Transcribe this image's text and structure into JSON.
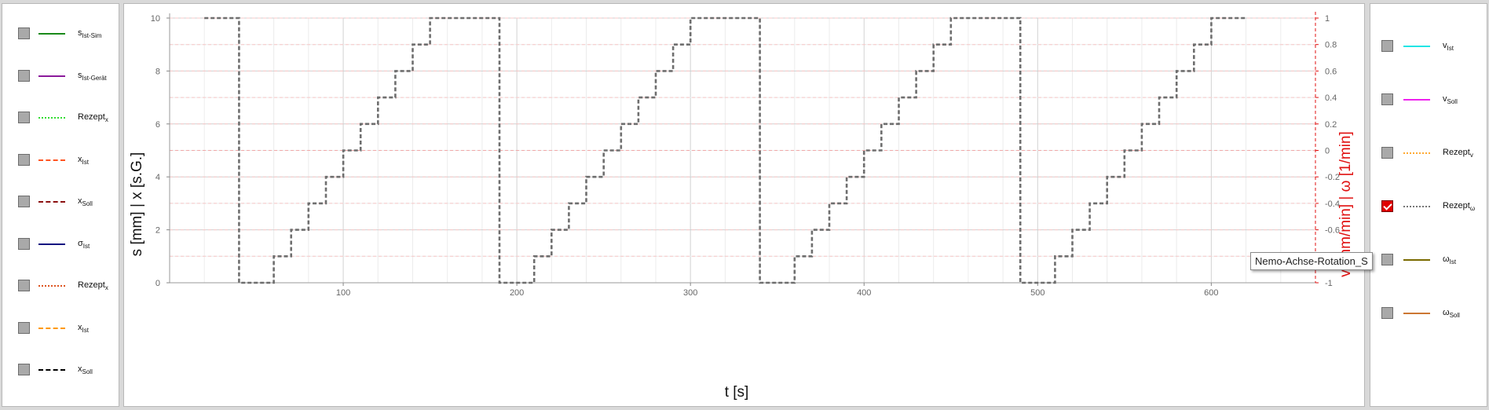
{
  "left_legend": [
    {
      "base": "s",
      "sub": "Ist-Sim",
      "color": "#1a8a1a",
      "style": "solid",
      "checked": false
    },
    {
      "base": "s",
      "sub": "Ist-Gerät",
      "color": "#8b1a9b",
      "style": "solid",
      "checked": false
    },
    {
      "base": "Rezept",
      "sub": "x",
      "color": "#33dd33",
      "style": "dotted",
      "checked": false
    },
    {
      "base": "x",
      "sub": "Ist",
      "color": "#ff5522",
      "style": "dashdot",
      "checked": false
    },
    {
      "base": "x",
      "sub": "Soll",
      "color": "#8b1010",
      "style": "dashdot",
      "checked": false
    },
    {
      "base": "σ",
      "sub": "Ist",
      "color": "#101080",
      "style": "solid",
      "checked": false
    },
    {
      "base": "Rezept",
      "sub": "x",
      "color": "#dd5522",
      "style": "dotted",
      "checked": false
    },
    {
      "base": "x",
      "sub": "Ist",
      "color": "#ff9900",
      "style": "dashdot",
      "checked": false
    },
    {
      "base": "x",
      "sub": "Soll",
      "color": "#000000",
      "style": "dashdot",
      "checked": false
    }
  ],
  "right_legend": [
    {
      "base": "v",
      "sub": "Ist",
      "color": "#22e5e5",
      "style": "solid",
      "checked": false
    },
    {
      "base": "v",
      "sub": "Soll",
      "color": "#ee22ee",
      "style": "solid",
      "checked": false
    },
    {
      "base": "Rezept",
      "sub": "v",
      "color": "#ffaa33",
      "style": "dotted",
      "checked": false
    },
    {
      "base": "Rezept",
      "sub": "ω",
      "color": "#777777",
      "style": "dotted",
      "checked": true
    },
    {
      "base": "ω",
      "sub": "Ist",
      "color": "#7a6a00",
      "style": "solid",
      "checked": false
    },
    {
      "base": "ω",
      "sub": "Soll",
      "color": "#cc7733",
      "style": "solid",
      "checked": false
    }
  ],
  "tooltip": "Nemo-Achse-Rotation_S",
  "chart_data": {
    "type": "line",
    "xlabel": "t [s]",
    "ylabel": "s [mm] | x [s.G.]",
    "y2label": "v [mm/min] | ω [1/min]",
    "xlim": [
      0,
      660
    ],
    "ylim": [
      0,
      10
    ],
    "y2lim": [
      -1,
      1
    ],
    "x_ticks": [
      100,
      200,
      300,
      400,
      500,
      600
    ],
    "y_ticks": [
      0,
      2,
      4,
      6,
      8,
      10
    ],
    "y2_ticks": [
      -1,
      -0.8,
      -0.6,
      -0.4,
      -0.2,
      0,
      0.2,
      0.4,
      0.6,
      0.8,
      1
    ],
    "grid": true,
    "series": [
      {
        "name": "Rezeptω",
        "axis": "y2",
        "color": "#6e6e6e",
        "style": "dashed",
        "points": [
          [
            20,
            1
          ],
          [
            40,
            1
          ],
          [
            40,
            -1
          ],
          [
            60,
            -1
          ],
          [
            60,
            -0.8
          ],
          [
            70,
            -0.8
          ],
          [
            70,
            -0.6
          ],
          [
            80,
            -0.6
          ],
          [
            80,
            -0.4
          ],
          [
            90,
            -0.4
          ],
          [
            90,
            -0.2
          ],
          [
            100,
            -0.2
          ],
          [
            100,
            0
          ],
          [
            110,
            0
          ],
          [
            110,
            0.2
          ],
          [
            120,
            0.2
          ],
          [
            120,
            0.4
          ],
          [
            130,
            0.4
          ],
          [
            130,
            0.6
          ],
          [
            140,
            0.6
          ],
          [
            140,
            0.8
          ],
          [
            150,
            0.8
          ],
          [
            150,
            1
          ],
          [
            190,
            1
          ],
          [
            190,
            -1
          ],
          [
            210,
            -1
          ],
          [
            210,
            -0.8
          ],
          [
            220,
            -0.8
          ],
          [
            220,
            -0.6
          ],
          [
            230,
            -0.6
          ],
          [
            230,
            -0.4
          ],
          [
            240,
            -0.4
          ],
          [
            240,
            -0.2
          ],
          [
            250,
            -0.2
          ],
          [
            250,
            0
          ],
          [
            260,
            0
          ],
          [
            260,
            0.2
          ],
          [
            270,
            0.2
          ],
          [
            270,
            0.4
          ],
          [
            280,
            0.4
          ],
          [
            280,
            0.6
          ],
          [
            290,
            0.6
          ],
          [
            290,
            0.8
          ],
          [
            300,
            0.8
          ],
          [
            300,
            1
          ],
          [
            340,
            1
          ],
          [
            340,
            -1
          ],
          [
            360,
            -1
          ],
          [
            360,
            -0.8
          ],
          [
            370,
            -0.8
          ],
          [
            370,
            -0.6
          ],
          [
            380,
            -0.6
          ],
          [
            380,
            -0.4
          ],
          [
            390,
            -0.4
          ],
          [
            390,
            -0.2
          ],
          [
            400,
            -0.2
          ],
          [
            400,
            0
          ],
          [
            410,
            0
          ],
          [
            410,
            0.2
          ],
          [
            420,
            0.2
          ],
          [
            420,
            0.4
          ],
          [
            430,
            0.4
          ],
          [
            430,
            0.6
          ],
          [
            440,
            0.6
          ],
          [
            440,
            0.8
          ],
          [
            450,
            0.8
          ],
          [
            450,
            1
          ],
          [
            490,
            1
          ],
          [
            490,
            -1
          ],
          [
            510,
            -1
          ],
          [
            510,
            -0.8
          ],
          [
            520,
            -0.8
          ],
          [
            520,
            -0.6
          ],
          [
            530,
            -0.6
          ],
          [
            530,
            -0.4
          ],
          [
            540,
            -0.4
          ],
          [
            540,
            -0.2
          ],
          [
            550,
            -0.2
          ],
          [
            550,
            0
          ],
          [
            560,
            0
          ],
          [
            560,
            0.2
          ],
          [
            570,
            0.2
          ],
          [
            570,
            0.4
          ],
          [
            580,
            0.4
          ],
          [
            580,
            0.6
          ],
          [
            590,
            0.6
          ],
          [
            590,
            0.8
          ],
          [
            600,
            0.8
          ],
          [
            600,
            1
          ],
          [
            620,
            1
          ]
        ]
      }
    ]
  }
}
